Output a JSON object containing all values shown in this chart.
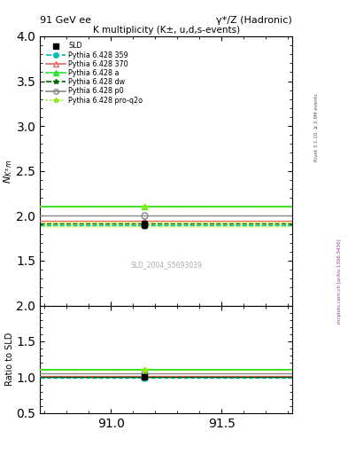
{
  "title_top_left": "91 GeV ee",
  "title_top_right": "γ*/Z (Hadronic)",
  "plot_title": "K multiplicity (K±, u,d,s-events)",
  "ylabel_main": "$N_{K^{\\pm}m}$",
  "ylabel_ratio": "Ratio to SLD",
  "watermark": "SLD_2004_S5693039",
  "right_label_top": "Rivet 3.1.10, ≥ 2.9M events",
  "right_label_bottom": "mcplots.cern.ch [arXiv:1306.3436]",
  "x_center": 91.15,
  "xlim": [
    90.68,
    91.82
  ],
  "xticks": [
    91.0,
    91.5
  ],
  "ylim_main": [
    1.0,
    4.0
  ],
  "yticks_main": [
    1.5,
    2.0,
    2.5,
    3.0,
    3.5,
    4.0
  ],
  "ylim_ratio": [
    0.5,
    2.0
  ],
  "yticks_ratio": [
    0.5,
    1.0,
    1.5,
    2.0
  ],
  "sld_value": 1.906,
  "sld_err": 0.04,
  "mc_lines": [
    {
      "label": "Pythia 6.428 359",
      "value": 1.895,
      "color": "#00BBBB",
      "linestyle": "dashed",
      "marker": "o",
      "mfc": "#00BBBB",
      "lw": 1.0
    },
    {
      "label": "Pythia 6.428 370",
      "value": 1.945,
      "color": "#EE6666",
      "linestyle": "solid",
      "marker": "^",
      "mfc": "none",
      "lw": 1.0
    },
    {
      "label": "Pythia 6.428 a",
      "value": 2.1,
      "color": "#33DD33",
      "linestyle": "solid",
      "marker": "^",
      "mfc": "#33DD33",
      "lw": 1.5
    },
    {
      "label": "Pythia 6.428 dw",
      "value": 1.915,
      "color": "#006600",
      "linestyle": "dashed",
      "marker": "*",
      "mfc": "#006600",
      "lw": 1.0
    },
    {
      "label": "Pythia 6.428 p0",
      "value": 2.0,
      "color": "#888888",
      "linestyle": "solid",
      "marker": "o",
      "mfc": "none",
      "lw": 1.0
    },
    {
      "label": "Pythia 6.428 pro-q2o",
      "value": 2.1,
      "color": "#88EE00",
      "linestyle": "dotted",
      "marker": "*",
      "mfc": "#88EE00",
      "lw": 1.0
    }
  ],
  "band_color": "#CCFF44",
  "band_alpha": 0.5
}
